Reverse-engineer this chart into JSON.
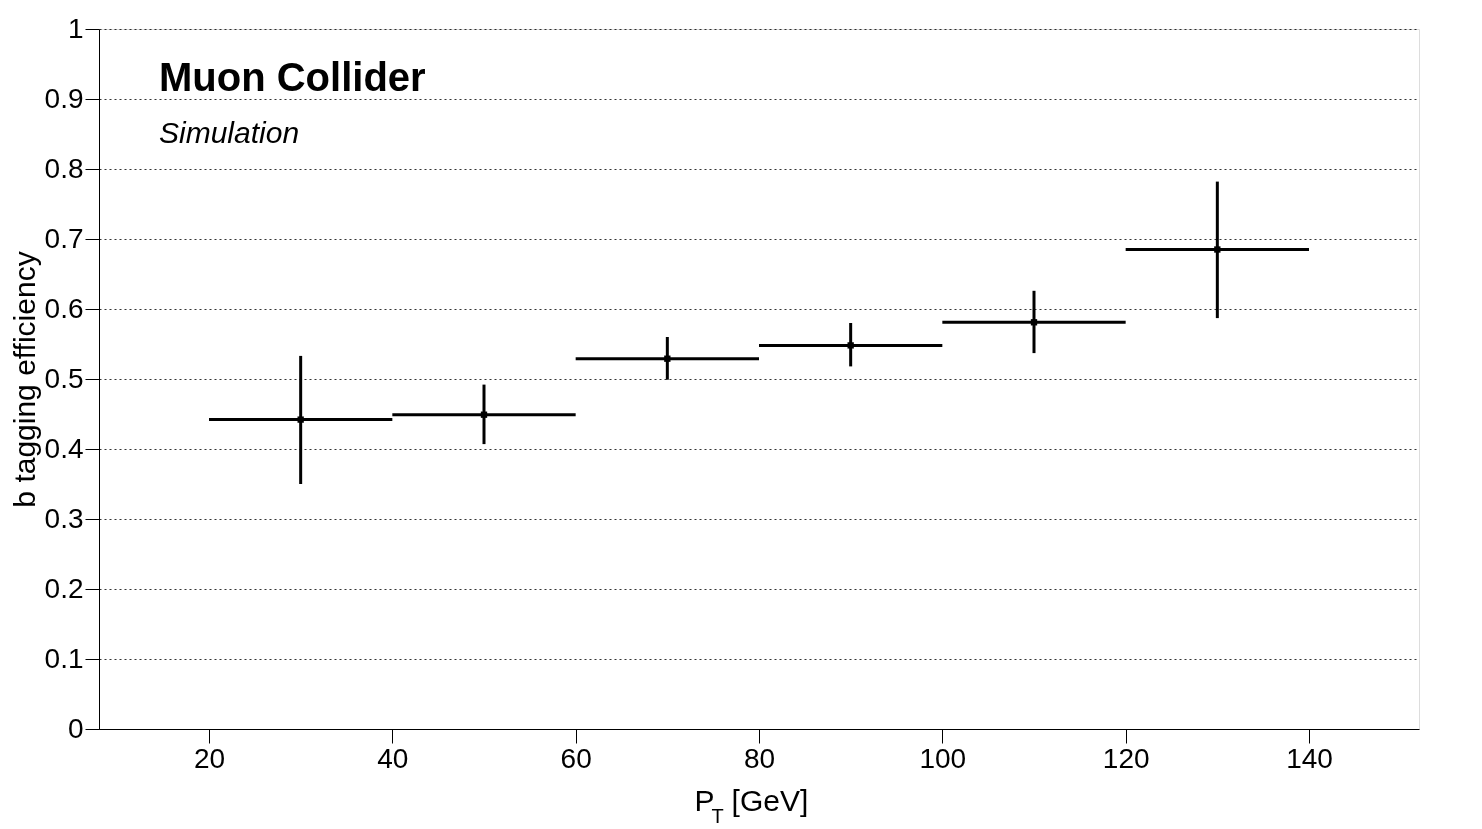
{
  "chart_data": {
    "type": "scatter",
    "xlabel": "P$_{T}$ [GeV]",
    "ylabel": "b tagging efficiency",
    "annotations": [
      "Muon Collider",
      "Simulation"
    ],
    "x": [
      30,
      50,
      70,
      90,
      110,
      130
    ],
    "series": [
      {
        "color": "#000000",
        "values": [
          0.442,
          0.449,
          0.529,
          0.548,
          0.581,
          0.685
        ],
        "errors": [
          [
            0.35,
            0.533
          ],
          [
            0.407,
            0.492
          ],
          [
            0.499,
            0.56
          ],
          [
            0.518,
            0.58
          ],
          [
            0.537,
            0.626
          ],
          [
            0.587,
            0.782
          ]
        ],
        "xerrors": [
          10,
          10,
          10,
          10,
          10,
          10
        ]
      }
    ],
    "xlim": [
      8,
      152
    ],
    "xticks": [
      20,
      40,
      60,
      80,
      100,
      120,
      140
    ],
    "ylim": [
      0,
      1
    ],
    "yticks": [
      0,
      0.1,
      0.2,
      0.3,
      0.4,
      0.5,
      0.6,
      0.7,
      0.8,
      0.9,
      1
    ],
    "grid": "y",
    "marker": "square"
  }
}
